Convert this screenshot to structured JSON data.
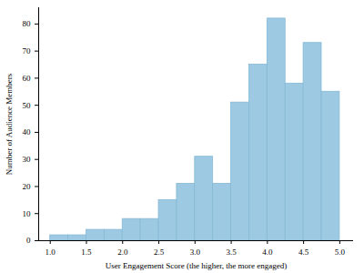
{
  "chart_data": {
    "type": "histogram",
    "xlabel": "User Engagement Score (the higher, the more engaged)",
    "ylabel": "Number of Audience Members",
    "bins": [
      1.0,
      1.25,
      1.5,
      1.75,
      2.0,
      2.25,
      2.5,
      2.75,
      3.0,
      3.25,
      3.5,
      3.75,
      4.0,
      4.25,
      4.5,
      4.75,
      5.0
    ],
    "values": [
      2,
      2,
      4,
      4,
      8,
      8,
      15,
      21,
      31,
      21,
      51,
      65,
      82,
      58,
      73,
      55
    ],
    "color": "#9dc9e2",
    "xlim": [
      0.84,
      5.19
    ],
    "xticks": [
      {
        "value": 1,
        "label": "1.0"
      },
      {
        "value": 1.5,
        "label": "1.5"
      },
      {
        "value": 2,
        "label": "2.0"
      },
      {
        "value": 2.5,
        "label": "2.5"
      },
      {
        "value": 3,
        "label": "3.0"
      },
      {
        "value": 3.5,
        "label": "3.5"
      },
      {
        "value": 4,
        "label": "4.0"
      },
      {
        "value": 4.5,
        "label": "4.5"
      },
      {
        "value": 5,
        "label": "5.0"
      }
    ],
    "ylim": [
      0,
      86
    ],
    "yticks": [
      0,
      10,
      20,
      30,
      40,
      50,
      60,
      70,
      80
    ],
    "grid": false
  }
}
